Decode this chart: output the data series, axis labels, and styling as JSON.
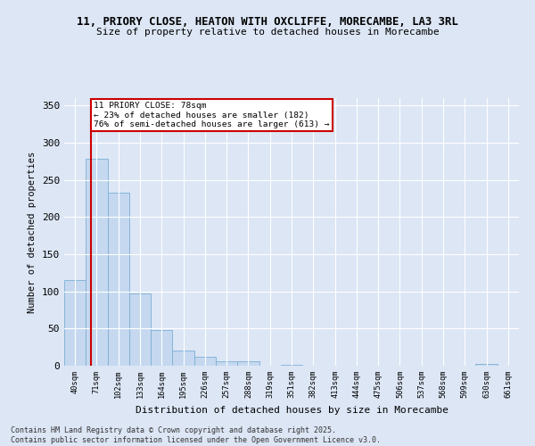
{
  "title_line1": "11, PRIORY CLOSE, HEATON WITH OXCLIFFE, MORECAMBE, LA3 3RL",
  "title_line2": "Size of property relative to detached houses in Morecambe",
  "xlabel": "Distribution of detached houses by size in Morecambe",
  "ylabel": "Number of detached properties",
  "categories": [
    "40sqm",
    "71sqm",
    "102sqm",
    "133sqm",
    "164sqm",
    "195sqm",
    "226sqm",
    "257sqm",
    "288sqm",
    "319sqm",
    "351sqm",
    "382sqm",
    "413sqm",
    "444sqm",
    "475sqm",
    "506sqm",
    "537sqm",
    "568sqm",
    "599sqm",
    "630sqm",
    "661sqm"
  ],
  "values": [
    115,
    278,
    233,
    97,
    48,
    20,
    12,
    6,
    6,
    0,
    1,
    0,
    0,
    0,
    0,
    0,
    0,
    0,
    0,
    2,
    0
  ],
  "bar_color": "#c5d8f0",
  "bar_edge_color": "#7bafd4",
  "subject_line_color": "#cc0000",
  "annotation_text": "11 PRIORY CLOSE: 78sqm\n← 23% of detached houses are smaller (182)\n76% of semi-detached houses are larger (613) →",
  "annotation_box_facecolor": "#ffffff",
  "annotation_box_edgecolor": "#cc0000",
  "ylim": [
    0,
    360
  ],
  "yticks": [
    0,
    50,
    100,
    150,
    200,
    250,
    300,
    350
  ],
  "footer_line1": "Contains HM Land Registry data © Crown copyright and database right 2025.",
  "footer_line2": "Contains public sector information licensed under the Open Government Licence v3.0.",
  "bg_color": "#dce6f5",
  "plot_bg_color": "#dce6f5"
}
